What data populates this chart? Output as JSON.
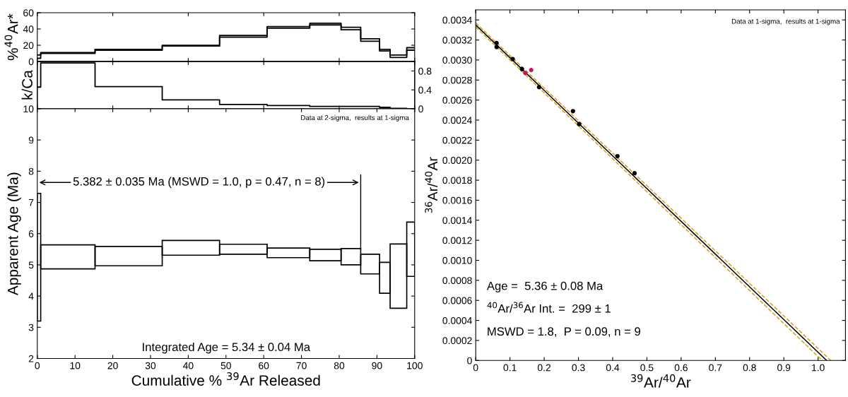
{
  "chart_data": [
    {
      "type": "step",
      "ylabel": "%$^{40}$Ar*",
      "x": [
        0,
        0.9,
        15.3,
        33.1,
        48.3,
        60.9,
        72.2,
        80.5,
        85.7,
        90.7,
        93.5,
        97.9,
        100
      ],
      "series": [
        {
          "color": "#000000",
          "values": [
            8,
            11,
            15,
            20,
            32,
            43,
            47,
            42,
            28,
            15,
            8,
            17,
            17
          ]
        },
        {
          "color": "#000000",
          "values": [
            4,
            10,
            14,
            19,
            30,
            41,
            45,
            39,
            25,
            13,
            5,
            14,
            14
          ]
        }
      ],
      "xlim": [
        0,
        100
      ],
      "ylim": [
        0,
        60
      ],
      "yticks": [
        0,
        20,
        40,
        60
      ],
      "tick_labels": "y",
      "legend": false,
      "grid": false
    },
    {
      "type": "step",
      "ylabel": "k/Ca",
      "x": [
        0,
        0.9,
        15.3,
        33.1,
        48.3,
        60.9,
        72.2,
        80.5,
        85.7,
        90.7,
        93.5,
        97.9,
        100
      ],
      "series": [
        {
          "color": "#000000",
          "axis": "y2",
          "values": [
            0.46,
            0.97,
            0.47,
            0.19,
            0.09,
            0.07,
            0.05,
            0.05,
            0.05,
            0.03,
            0.01,
            0,
            0
          ]
        }
      ],
      "xlim": [
        0,
        100
      ],
      "y2lim": [
        0,
        1.0
      ],
      "y2ticks": [
        0,
        0.4,
        0.8
      ],
      "tick_labels": "y",
      "legend": false,
      "grid": false
    },
    {
      "type": "bar",
      "xlabel": "Cumulative % $^{39}$Ar Released",
      "ylabel": "Apparent Age (Ma)",
      "x": [
        0.45,
        8.1,
        24.2,
        40.7,
        54.6,
        66.55,
        76.35,
        83.1,
        88.2,
        92.1,
        95.7,
        98.95
      ],
      "series": [
        {
          "color": "#000000",
          "base": [
            3.2,
            4.87,
            4.97,
            5.31,
            5.34,
            5.23,
            5.13,
            5.0,
            4.71,
            4.09,
            3.61,
            4.63
          ],
          "values": [
            4.09,
            0.77,
            0.62,
            0.47,
            0.32,
            0.31,
            0.37,
            0.52,
            0.63,
            0.99,
            2.06,
            1.74
          ]
        }
      ],
      "xlim": [
        0,
        100
      ],
      "xticks": [
        0,
        10,
        20,
        30,
        40,
        50,
        60,
        70,
        80,
        90,
        100
      ],
      "ylim": [
        2,
        10
      ],
      "yticks": [
        2,
        3,
        4,
        5,
        6,
        7,
        8,
        9,
        10
      ],
      "annotations": [
        "5.382 ± 0.035 Ma (MSWD = 1.0, p = 0.47, n = 8)",
        "Data at 2-sigma,  results at 1-sigma",
        "Integrated Age = 5.34 ± 0.04 Ma"
      ],
      "legend": false,
      "grid": false
    },
    {
      "type": "scatter",
      "xlabel": "$^{39}$Ar/$^{40}$Ar",
      "ylabel": "$^{36}$Ar/$^{40}$Ar",
      "marker": "circle",
      "series": [
        {
          "color": "#000000",
          "x": [
            0.061,
            0.061,
            0.108,
            0.135,
            0.185,
            0.284,
            0.302,
            0.414,
            0.464
          ],
          "values": [
            0.00317,
            0.00313,
            0.00301,
            0.00291,
            0.00273,
            0.00249,
            0.00236,
            0.00204,
            0.00187
          ]
        },
        {
          "color": "#c2185b",
          "x": [
            0.145,
            0.162
          ],
          "values": [
            0.00287,
            0.0029
          ]
        },
        {
          "type": "line",
          "color": "#000000",
          "marker": "none",
          "x": [
            0,
            1.025
          ],
          "values": [
            0.00335,
            0
          ]
        },
        {
          "type": "line",
          "color": "#d4a020",
          "marker": "none",
          "line_style": "dashed",
          "x": [
            0,
            1.012
          ],
          "values": [
            0.00333,
            0
          ]
        },
        {
          "type": "line",
          "color": "#d4a020",
          "marker": "none",
          "line_style": "dashed",
          "x": [
            0,
            1.037
          ],
          "values": [
            0.00337,
            0
          ]
        }
      ],
      "xlim": [
        0,
        1.08
      ],
      "xticks": [
        0,
        0.1,
        0.2,
        0.3,
        0.4,
        0.5,
        0.6,
        0.7,
        0.8,
        0.9,
        {
          "value": 1.0,
          "label": "1.0"
        }
      ],
      "ylim": [
        0,
        0.0035
      ],
      "yticks": [
        0,
        0.0002,
        0.0004,
        0.0006,
        0.0008,
        {
          "value": 0.001,
          "label": "0.0010"
        },
        0.0012,
        0.0014,
        0.0016,
        0.0018,
        {
          "value": 0.002,
          "label": "0.0020"
        },
        0.0022,
        0.0024,
        0.0026,
        0.0028,
        {
          "value": 0.003,
          "label": "0.0030"
        },
        0.0032,
        0.0034
      ],
      "annotations": [
        "Data at 1-sigma,  results at 1-sigma",
        "Age =  5.36 ± 0.08 Ma",
        "$^{40}$Ar/$^{36}$Ar Int. =  299 ± 1",
        "MSWD = 1.8,  P = 0.09, n = 9"
      ],
      "legend": false,
      "grid": false
    }
  ]
}
